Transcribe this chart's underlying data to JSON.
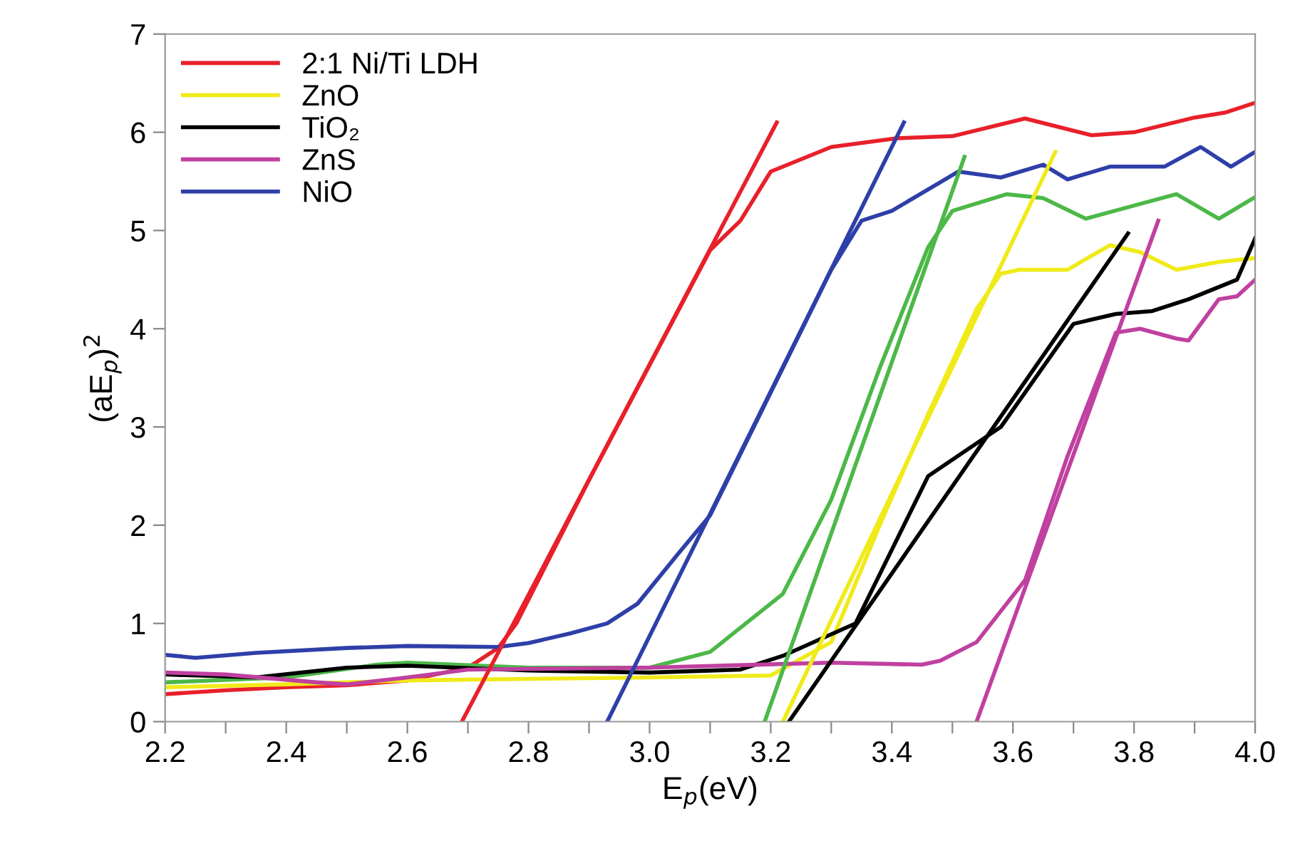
{
  "chart_data": {
    "type": "line",
    "xlabel": "E$_{p}$(eV)",
    "ylabel": "(aE$_{p}$)$^{2}$",
    "xlim": [
      2.2,
      4.0
    ],
    "ylim": [
      0,
      7
    ],
    "xticks": [
      2.2,
      {
        "value": 2.3,
        "label": null
      },
      2.4,
      {
        "value": 2.5,
        "label": null
      },
      2.6,
      {
        "value": 2.7,
        "label": null
      },
      2.8,
      {
        "value": 2.9,
        "label": null
      },
      {
        "value": 3.0,
        "label": "3.0"
      },
      {
        "value": 3.1,
        "label": null
      },
      3.2,
      {
        "value": 3.3,
        "label": null
      },
      3.4,
      {
        "value": 3.5,
        "label": null
      },
      3.6,
      {
        "value": 3.7,
        "label": null
      },
      3.8,
      {
        "value": 3.9,
        "label": null
      },
      {
        "value": 4.0,
        "label": "4.0"
      }
    ],
    "yticks": [
      0,
      1,
      2,
      3,
      4,
      5,
      6,
      7
    ],
    "grid": false,
    "legend": "top left",
    "marker": "none",
    "line_style": "solid",
    "series": [
      {
        "name": "2:1 Ni/Ti LDH",
        "color": "#e8202a",
        "x": [
          2.2,
          2.3,
          2.4,
          2.5,
          2.6,
          2.7,
          2.75,
          2.78,
          2.9,
          3.0,
          3.1,
          3.15,
          3.2,
          3.3,
          3.41,
          3.5,
          3.62,
          3.73,
          3.8,
          3.9,
          3.95,
          4.0
        ],
        "values": [
          0.28,
          0.32,
          0.35,
          0.37,
          0.42,
          0.55,
          0.75,
          1.0,
          2.46,
          3.63,
          4.8,
          5.1,
          5.6,
          5.85,
          5.94,
          5.96,
          6.14,
          5.97,
          6.0,
          6.15,
          6.2,
          6.3
        ]
      },
      {
        "color": "#4cb848",
        "x": [
          2.2,
          2.4,
          2.55,
          2.6,
          2.8,
          3.0,
          3.1,
          3.22,
          3.3,
          3.38,
          3.46,
          3.5,
          3.59,
          3.65,
          3.72,
          3.81,
          3.87,
          3.94,
          4.0
        ],
        "values": [
          0.4,
          0.45,
          0.58,
          0.6,
          0.55,
          0.55,
          0.71,
          1.3,
          2.26,
          3.6,
          4.83,
          5.2,
          5.37,
          5.33,
          5.12,
          5.27,
          5.37,
          5.12,
          5.34
        ]
      },
      {
        "name": "ZnO",
        "color": "#f0ea1a",
        "x": [
          2.2,
          2.4,
          2.6,
          3.0,
          3.2,
          3.3,
          3.38,
          3.46,
          3.54,
          3.58,
          3.61,
          3.69,
          3.76,
          3.81,
          3.87,
          3.94,
          4.0
        ],
        "values": [
          0.35,
          0.38,
          0.42,
          0.45,
          0.47,
          0.81,
          2.0,
          3.13,
          4.2,
          4.56,
          4.6,
          4.6,
          4.85,
          4.78,
          4.6,
          4.68,
          4.72
        ]
      },
      {
        "name": "TiO₂",
        "color": "#000000",
        "x": [
          2.2,
          2.35,
          2.5,
          2.6,
          2.8,
          3.0,
          3.15,
          3.22,
          3.34,
          3.46,
          3.58,
          3.7,
          3.77,
          3.83,
          3.89,
          3.97,
          4.0
        ],
        "values": [
          0.48,
          0.45,
          0.55,
          0.57,
          0.52,
          0.5,
          0.53,
          0.67,
          1.0,
          2.5,
          3.0,
          4.05,
          4.15,
          4.18,
          4.3,
          4.5,
          4.92
        ]
      },
      {
        "name": "ZnS",
        "color": "#c040a0",
        "x": [
          2.2,
          2.3,
          2.45,
          2.5,
          2.6,
          2.7,
          3.0,
          3.3,
          3.45,
          3.48,
          3.54,
          3.62,
          3.69,
          3.77,
          3.81,
          3.87,
          3.89,
          3.94,
          3.97,
          4.0
        ],
        "values": [
          0.5,
          0.48,
          0.4,
          0.38,
          0.45,
          0.53,
          0.55,
          0.6,
          0.58,
          0.62,
          0.81,
          1.44,
          2.7,
          3.96,
          4.0,
          3.9,
          3.88,
          4.3,
          4.33,
          4.5
        ]
      },
      {
        "name": "NiO",
        "color": "#2e3fa8",
        "x": [
          2.2,
          2.25,
          2.35,
          2.5,
          2.6,
          2.75,
          2.8,
          2.87,
          2.93,
          2.98,
          3.05,
          3.1,
          3.2,
          3.3,
          3.35,
          3.4,
          3.51,
          3.58,
          3.65,
          3.69,
          3.76,
          3.85,
          3.91,
          3.96,
          4.0
        ],
        "values": [
          0.68,
          0.65,
          0.7,
          0.75,
          0.77,
          0.76,
          0.8,
          0.9,
          1.0,
          1.2,
          1.73,
          2.1,
          3.35,
          4.6,
          5.1,
          5.2,
          5.6,
          5.54,
          5.67,
          5.52,
          5.65,
          5.65,
          5.85,
          5.65,
          5.8
        ]
      },
      {
        "color": "#e8202a",
        "x": [
          2.69,
          3.21
        ],
        "values": [
          0,
          6.1
        ]
      },
      {
        "color": "#2e3fa8",
        "x": [
          2.93,
          3.42
        ],
        "values": [
          0,
          6.1
        ]
      },
      {
        "color": "#4cb848",
        "x": [
          3.19,
          3.52
        ],
        "values": [
          0,
          5.75
        ]
      },
      {
        "color": "#f0ea1a",
        "x": [
          3.22,
          3.67
        ],
        "values": [
          0,
          5.8
        ]
      },
      {
        "color": "#000000",
        "x": [
          3.23,
          3.79
        ],
        "values": [
          0,
          4.97
        ]
      },
      {
        "color": "#c040a0",
        "x": [
          3.54,
          3.84
        ],
        "values": [
          0,
          5.1
        ]
      }
    ]
  }
}
